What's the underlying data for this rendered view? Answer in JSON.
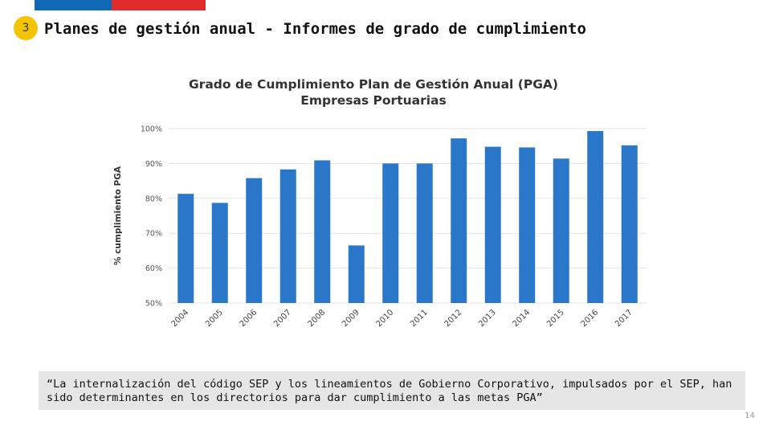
{
  "slide": {
    "badge": "3",
    "title": "Planes de gestión anual - Informes de grado de cumplimiento",
    "quote": "“La internalización del código SEP y los lineamientos de Gobierno Corporativo, impulsados por el SEP, han sido determinantes en los directorios para dar cumplimiento a las metas PGA”",
    "page_number": "14"
  },
  "colors": {
    "bar": "#2a77c9",
    "flag_blue": "#0f69b4",
    "flag_red": "#e22c2c",
    "badge": "#f5c400"
  },
  "chart_data": {
    "type": "bar",
    "title_lines": [
      "Grado de Cumplimiento Plan de Gestión Anual (PGA)",
      "Empresas Portuarias"
    ],
    "xlabel": "",
    "ylabel": "% cumplimiento PGA",
    "categories": [
      "2004",
      "2005",
      "2006",
      "2007",
      "2008",
      "2009",
      "2010",
      "2011",
      "2012",
      "2013",
      "2014",
      "2015",
      "2016",
      "2017"
    ],
    "values": [
      81.3,
      78.7,
      85.8,
      88.3,
      90.9,
      66.5,
      90.0,
      90.0,
      97.2,
      94.8,
      94.6,
      91.4,
      99.3,
      95.2
    ],
    "ylim": [
      50,
      100
    ],
    "yticks": [
      50,
      60,
      70,
      80,
      90,
      100
    ],
    "ytick_labels": [
      "50%",
      "60%",
      "70%",
      "80%",
      "90%",
      "100%"
    ],
    "grid": true,
    "legend": "none"
  }
}
